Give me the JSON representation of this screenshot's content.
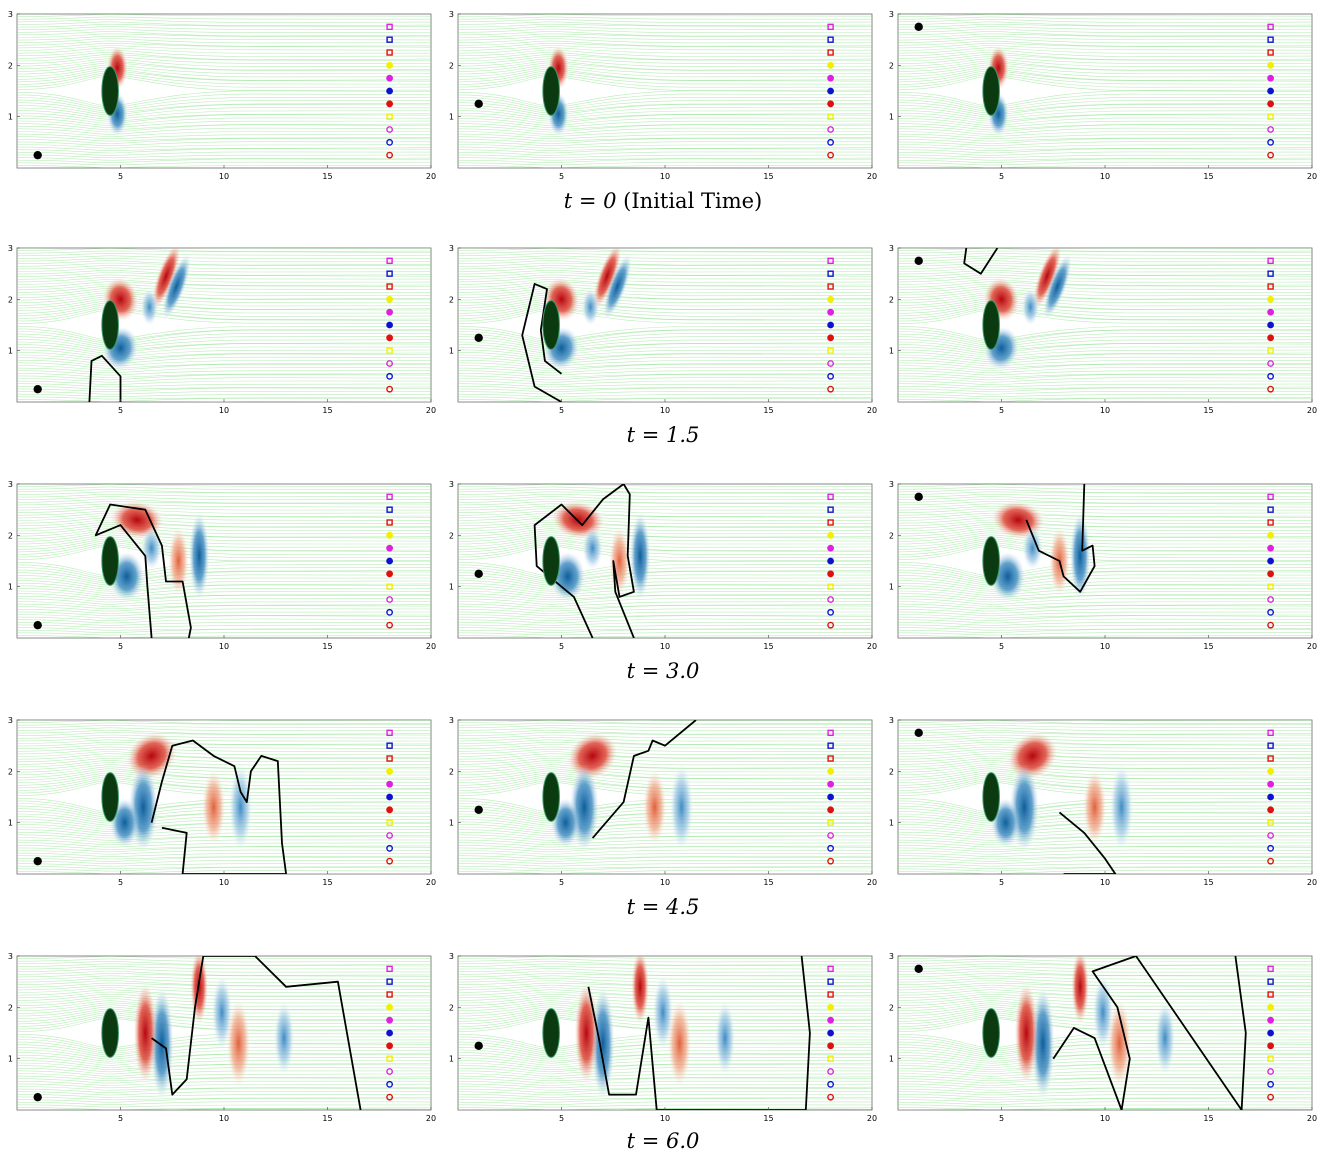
{
  "figure": {
    "xticks": [
      "5",
      "10",
      "15",
      "20"
    ],
    "yticks": [
      "1",
      "2",
      "3"
    ],
    "xlim": [
      0,
      20
    ],
    "ylim": [
      0,
      3
    ],
    "colors": {
      "streamline": "#7fdc7f",
      "vortex_positive": "#c8141c",
      "vortex_negative": "#1f6fb0",
      "obstacle": "#0b3a10",
      "front": "#000000"
    },
    "obstacle": {
      "x": 4.5,
      "y": 1.5,
      "rx": 0.4,
      "ry": 0.5
    },
    "marker_column_x": 18,
    "markers": [
      {
        "y": 2.75,
        "shape": "square",
        "filled": false,
        "color": "#e020e0"
      },
      {
        "y": 2.5,
        "shape": "square",
        "filled": false,
        "color": "#1010d0"
      },
      {
        "y": 2.25,
        "shape": "square",
        "filled": false,
        "color": "#e01010"
      },
      {
        "y": 2.0,
        "shape": "circle",
        "filled": true,
        "color": "#f0f000"
      },
      {
        "y": 1.75,
        "shape": "circle",
        "filled": true,
        "color": "#e020e0"
      },
      {
        "y": 1.5,
        "shape": "circle",
        "filled": true,
        "color": "#1010d0"
      },
      {
        "y": 1.25,
        "shape": "circle",
        "filled": true,
        "color": "#e01010"
      },
      {
        "y": 1.0,
        "shape": "square",
        "filled": false,
        "color": "#f0f000"
      },
      {
        "y": 0.75,
        "shape": "circle",
        "filled": false,
        "color": "#e020e0"
      },
      {
        "y": 0.5,
        "shape": "circle",
        "filled": false,
        "color": "#1010d0"
      },
      {
        "y": 0.25,
        "shape": "circle",
        "filled": false,
        "color": "#e01010"
      }
    ],
    "source_points": [
      {
        "x": 1.0,
        "y": 0.25
      },
      {
        "x": 1.0,
        "y": 1.25
      },
      {
        "x": 1.0,
        "y": 2.75
      }
    ]
  },
  "captions": [
    {
      "math": "t = 0",
      "text": " (Initial Time)"
    },
    {
      "math": "t = 1.5",
      "text": ""
    },
    {
      "math": "t = 3.0",
      "text": ""
    },
    {
      "math": "t = 4.5",
      "text": ""
    },
    {
      "math": "t = 6.0",
      "text": ""
    }
  ]
}
